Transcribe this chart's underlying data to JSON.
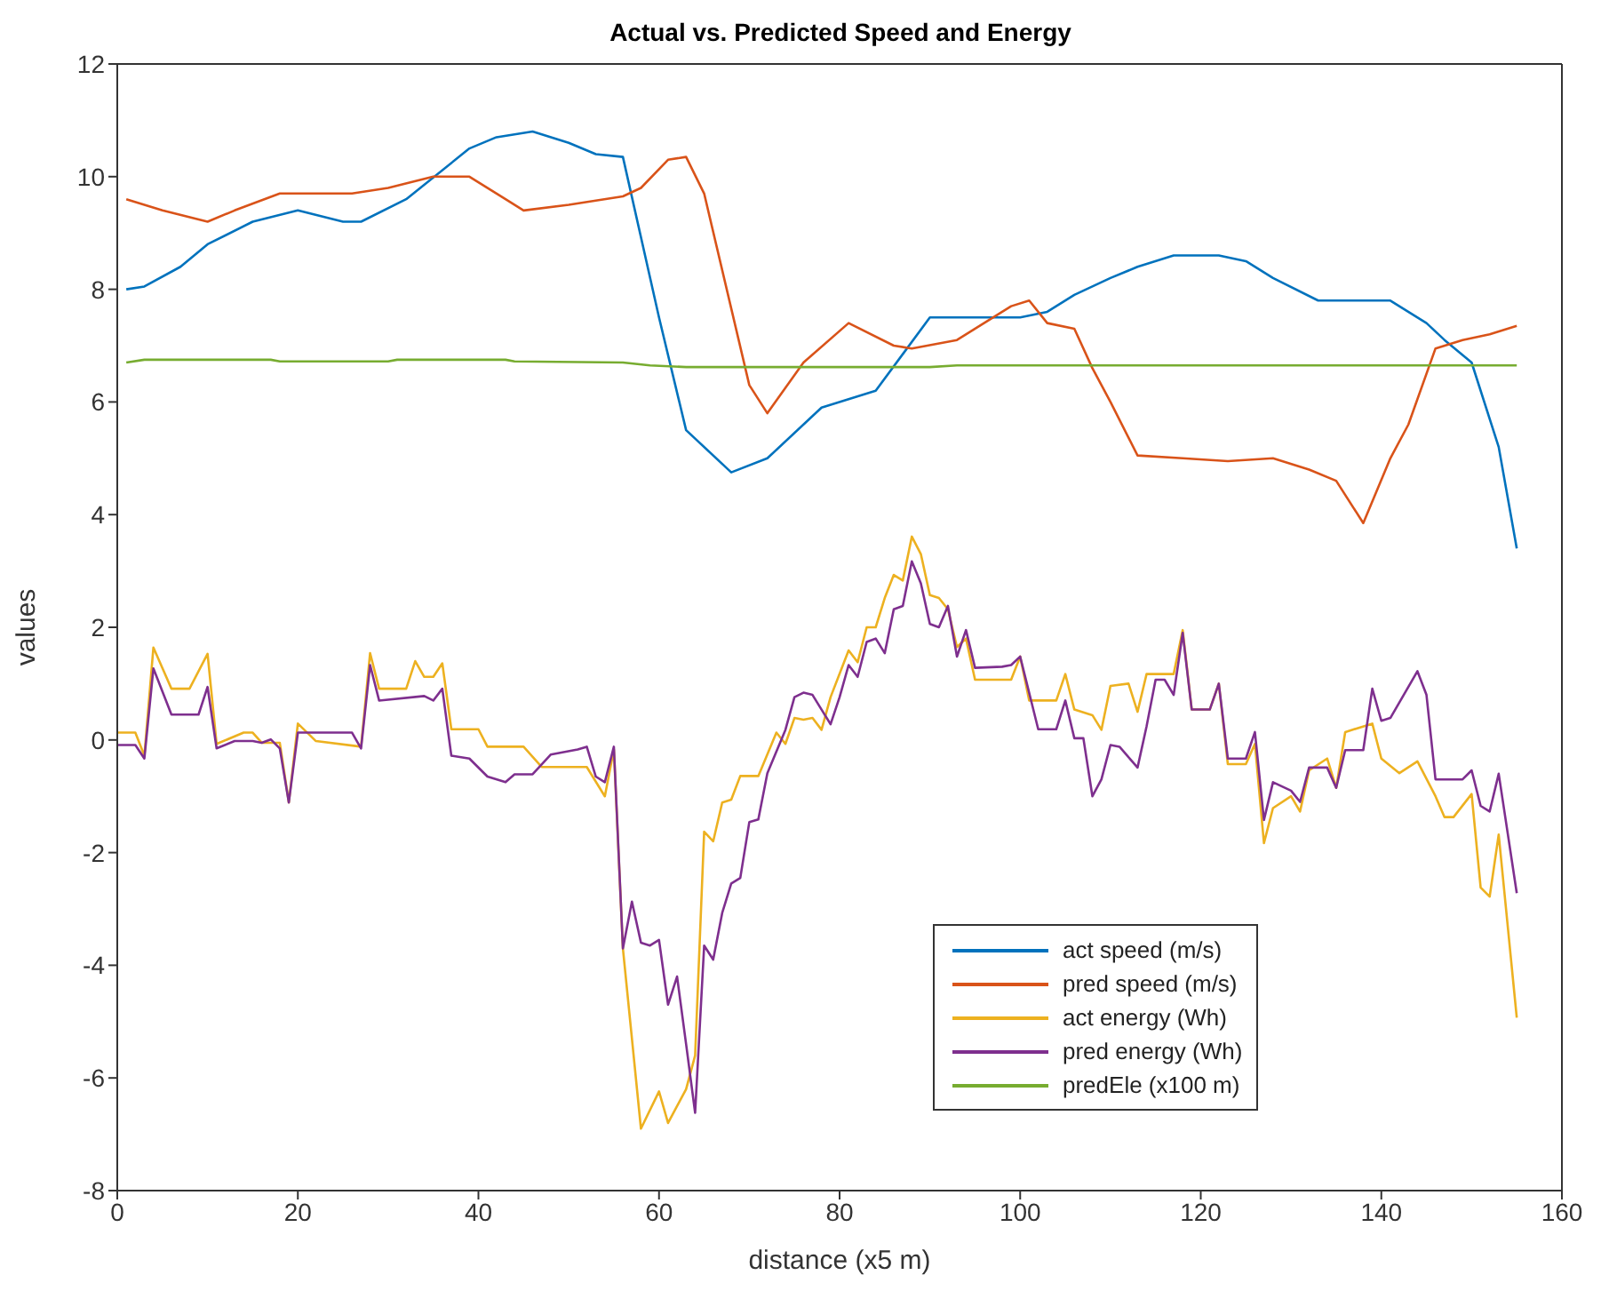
{
  "chart_data": {
    "type": "line",
    "title": "Actual vs. Predicted Speed and Energy",
    "xlabel": "distance (x5 m)",
    "ylabel": "values",
    "xlim": [
      0,
      160
    ],
    "xticks": [
      0,
      20,
      40,
      60,
      80,
      100,
      120,
      140,
      160
    ],
    "ylim": [
      -8,
      12
    ],
    "yticks": [
      -8,
      -6,
      -4,
      -2,
      0,
      2,
      4,
      6,
      8,
      10,
      12
    ],
    "grid": false,
    "legend": "bottom right",
    "marker": "none",
    "line_style": "solid",
    "series": [
      {
        "name": "act speed (m/s)",
        "color": "#0072bd",
        "x": [
          1,
          3,
          7,
          10,
          15,
          20,
          25,
          27,
          32,
          39,
          42,
          46,
          50,
          53,
          56,
          60,
          63,
          68,
          72,
          78,
          84,
          90,
          96,
          100,
          103,
          106,
          110,
          113,
          117,
          122,
          125,
          128,
          133,
          138,
          141,
          145,
          147,
          150,
          153,
          155
        ],
        "values": [
          8.0,
          8.05,
          8.4,
          8.8,
          9.2,
          9.4,
          9.2,
          9.2,
          9.6,
          10.5,
          10.7,
          10.8,
          10.6,
          10.4,
          10.35,
          7.5,
          5.5,
          4.75,
          5.0,
          5.9,
          6.2,
          7.5,
          7.5,
          7.5,
          7.6,
          7.9,
          8.2,
          8.4,
          8.6,
          8.6,
          8.5,
          8.2,
          7.8,
          7.8,
          7.8,
          7.4,
          7.1,
          6.7,
          5.2,
          3.4
        ]
      },
      {
        "name": "pred speed (m/s)",
        "color": "#d95319",
        "x": [
          1,
          5,
          10,
          13,
          18,
          26,
          30,
          35,
          39,
          43,
          45,
          50,
          56,
          58,
          61,
          63,
          65,
          70,
          72,
          76,
          81,
          86,
          88,
          93,
          99,
          101,
          103,
          106,
          108,
          110,
          113,
          118,
          123,
          128,
          132,
          135,
          138,
          141,
          143,
          146,
          149,
          152,
          155
        ],
        "values": [
          9.6,
          9.4,
          9.2,
          9.4,
          9.7,
          9.7,
          9.8,
          10.0,
          10.0,
          9.6,
          9.4,
          9.5,
          9.65,
          9.8,
          10.3,
          10.35,
          9.7,
          6.3,
          5.8,
          6.7,
          7.4,
          7.0,
          6.95,
          7.1,
          7.7,
          7.8,
          7.4,
          7.3,
          6.6,
          6.0,
          5.05,
          5.0,
          4.95,
          5.0,
          4.8,
          4.6,
          3.85,
          5.0,
          5.6,
          6.95,
          7.1,
          7.2,
          7.35
        ]
      },
      {
        "name": "act energy (Wh)",
        "color": "#edb120",
        "x": [
          0,
          1,
          2,
          3,
          4,
          6,
          8,
          10,
          11,
          14,
          15,
          16,
          18,
          19,
          20,
          22,
          27,
          28,
          29,
          32,
          33,
          34,
          35,
          36,
          37,
          40,
          41,
          45,
          47,
          52,
          54,
          55,
          56,
          58,
          60,
          61,
          63,
          64,
          65,
          66,
          67,
          68,
          69,
          71,
          73,
          74,
          75,
          76,
          77,
          78,
          79,
          81,
          82,
          83,
          84,
          85,
          86,
          87,
          88,
          89,
          90,
          91,
          92,
          93,
          94,
          95,
          99,
          100,
          101,
          104,
          105,
          106,
          108,
          109,
          110,
          112,
          113,
          114,
          117,
          118,
          119,
          121,
          122,
          123,
          125,
          126,
          127,
          128,
          130,
          131,
          132,
          134,
          135,
          136,
          139,
          140,
          142,
          144,
          146,
          147,
          148,
          150,
          151,
          152,
          153,
          155
        ],
        "values": [
          0.13,
          0.13,
          0.13,
          -0.28,
          1.64,
          0.91,
          0.91,
          1.53,
          -0.07,
          0.13,
          0.13,
          -0.05,
          -0.05,
          -1.11,
          0.29,
          -0.02,
          -0.12,
          1.54,
          0.91,
          0.91,
          1.4,
          1.12,
          1.12,
          1.36,
          0.19,
          0.19,
          -0.12,
          -0.12,
          -0.48,
          -0.48,
          -1.0,
          -0.17,
          -3.7,
          -6.9,
          -6.24,
          -6.8,
          -6.2,
          -5.6,
          -1.63,
          -1.8,
          -1.11,
          -1.06,
          -0.64,
          -0.64,
          0.13,
          -0.07,
          0.39,
          0.36,
          0.39,
          0.18,
          0.76,
          1.59,
          1.38,
          2.0,
          2.0,
          2.52,
          2.93,
          2.83,
          3.61,
          3.3,
          2.57,
          2.52,
          2.32,
          1.65,
          1.8,
          1.07,
          1.07,
          1.48,
          0.7,
          0.7,
          1.17,
          0.54,
          0.44,
          0.18,
          0.96,
          1.0,
          0.5,
          1.17,
          1.17,
          1.95,
          0.54,
          0.54,
          1.0,
          -0.43,
          -0.43,
          -0.07,
          -1.83,
          -1.21,
          -1.0,
          -1.27,
          -0.54,
          -0.33,
          -0.85,
          0.14,
          0.29,
          -0.33,
          -0.59,
          -0.38,
          -1.0,
          -1.37,
          -1.37,
          -0.96,
          -2.62,
          -2.78,
          -1.68,
          -4.93
        ]
      },
      {
        "name": "pred energy (Wh)",
        "color": "#7e2f8e",
        "x": [
          0,
          1,
          2,
          3,
          4,
          6,
          9,
          10,
          11,
          13,
          15,
          16,
          17,
          18,
          19,
          20,
          26,
          27,
          28,
          29,
          34,
          35,
          36,
          37,
          39,
          41,
          43,
          44,
          46,
          48,
          51,
          52,
          53,
          54,
          55,
          56,
          57,
          58,
          59,
          60,
          61,
          62,
          63,
          64,
          65,
          66,
          67,
          68,
          69,
          70,
          71,
          72,
          74,
          75,
          76,
          77,
          78,
          79,
          80,
          81,
          82,
          83,
          84,
          85,
          86,
          87,
          88,
          89,
          90,
          91,
          92,
          93,
          94,
          95,
          98,
          99,
          100,
          102,
          104,
          105,
          106,
          107,
          108,
          109,
          110,
          111,
          113,
          114,
          115,
          116,
          117,
          118,
          119,
          121,
          122,
          123,
          125,
          126,
          127,
          128,
          130,
          131,
          132,
          134,
          135,
          136,
          138,
          139,
          140,
          141,
          144,
          145,
          146,
          149,
          150,
          151,
          152,
          153,
          155
        ],
        "values": [
          -0.09,
          -0.09,
          -0.09,
          -0.33,
          1.27,
          0.45,
          0.45,
          0.94,
          -0.15,
          -0.02,
          -0.02,
          -0.05,
          0.01,
          -0.15,
          -1.11,
          0.13,
          0.13,
          -0.15,
          1.33,
          0.7,
          0.78,
          0.7,
          0.91,
          -0.28,
          -0.33,
          -0.65,
          -0.75,
          -0.61,
          -0.61,
          -0.26,
          -0.17,
          -0.12,
          -0.65,
          -0.75,
          -0.12,
          -3.7,
          -2.87,
          -3.6,
          -3.65,
          -3.55,
          -4.7,
          -4.2,
          -5.4,
          -6.62,
          -3.65,
          -3.9,
          -3.07,
          -2.55,
          -2.45,
          -1.46,
          -1.41,
          -0.59,
          0.18,
          0.76,
          0.84,
          0.8,
          0.54,
          0.28,
          0.76,
          1.33,
          1.12,
          1.74,
          1.8,
          1.54,
          2.32,
          2.38,
          3.17,
          2.78,
          2.06,
          2.0,
          2.38,
          1.48,
          1.95,
          1.28,
          1.3,
          1.33,
          1.48,
          0.19,
          0.19,
          0.7,
          0.03,
          0.03,
          -1.0,
          -0.7,
          -0.09,
          -0.12,
          -0.49,
          0.24,
          1.07,
          1.07,
          0.8,
          1.9,
          0.54,
          0.54,
          1.0,
          -0.33,
          -0.33,
          0.14,
          -1.42,
          -0.75,
          -0.9,
          -1.1,
          -0.49,
          -0.49,
          -0.85,
          -0.18,
          -0.18,
          0.91,
          0.34,
          0.39,
          1.22,
          0.8,
          -0.7,
          -0.7,
          -0.54,
          -1.17,
          -1.27,
          -0.6,
          -2.72
        ]
      },
      {
        "name": "predEle (x100 m)",
        "color": "#77ac30",
        "x": [
          1,
          3,
          17,
          18,
          30,
          31,
          43,
          44,
          56,
          59,
          63,
          90,
          93,
          155
        ],
        "values": [
          6.7,
          6.75,
          6.75,
          6.72,
          6.72,
          6.75,
          6.75,
          6.72,
          6.7,
          6.65,
          6.62,
          6.62,
          6.65,
          6.65
        ]
      }
    ]
  }
}
